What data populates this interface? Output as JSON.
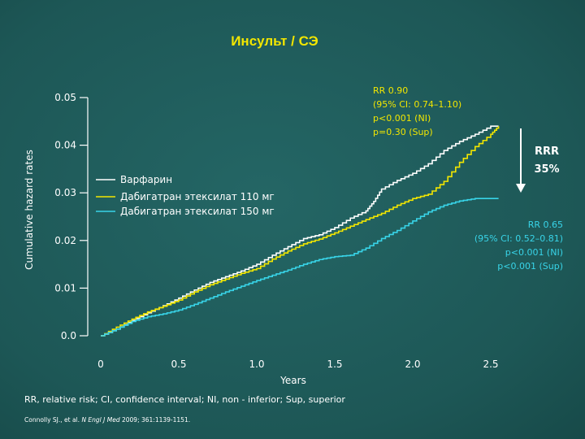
{
  "title": "Инсульт / СЭ",
  "colors": {
    "background": "#1f5c5b",
    "warfarin": "#ffffff",
    "dabi110": "#f2e600",
    "dabi150": "#38d4e8",
    "title": "#f2e600"
  },
  "chart_data": {
    "type": "line",
    "ylabel": "Cumulative hazard rates",
    "xlabel": "Years",
    "ylim": [
      0,
      0.05
    ],
    "xlim": [
      0,
      2.5
    ],
    "yticks": [
      "0.0",
      "0.01",
      "0.02",
      "0.03",
      "0.04",
      "0.05"
    ],
    "xticks": [
      "0",
      "0.5",
      "1.0",
      "1.5",
      "2.0",
      "2.5"
    ],
    "grid": false,
    "legend_position": "upper-left",
    "series": [
      {
        "name": "Варфарин",
        "color": "#ffffff",
        "points": [
          [
            0,
            0
          ],
          [
            0.1,
            0.0014
          ],
          [
            0.2,
            0.0032
          ],
          [
            0.3,
            0.0048
          ],
          [
            0.4,
            0.0063
          ],
          [
            0.5,
            0.0079
          ],
          [
            0.6,
            0.0096
          ],
          [
            0.7,
            0.0112
          ],
          [
            0.8,
            0.0124
          ],
          [
            0.9,
            0.0136
          ],
          [
            1.0,
            0.015
          ],
          [
            1.1,
            0.0169
          ],
          [
            1.2,
            0.0187
          ],
          [
            1.3,
            0.0204
          ],
          [
            1.4,
            0.0212
          ],
          [
            1.5,
            0.0227
          ],
          [
            1.6,
            0.0247
          ],
          [
            1.7,
            0.0262
          ],
          [
            1.75,
            0.0282
          ],
          [
            1.8,
            0.0308
          ],
          [
            1.9,
            0.0326
          ],
          [
            2.0,
            0.0341
          ],
          [
            2.1,
            0.0361
          ],
          [
            2.2,
            0.0389
          ],
          [
            2.3,
            0.0408
          ],
          [
            2.4,
            0.0423
          ],
          [
            2.5,
            0.044
          ],
          [
            2.55,
            0.044
          ]
        ]
      },
      {
        "name": "Дабигатран этексилат 110 мг",
        "color": "#f2e600",
        "points": [
          [
            0,
            0
          ],
          [
            0.1,
            0.0018
          ],
          [
            0.2,
            0.0035
          ],
          [
            0.3,
            0.005
          ],
          [
            0.4,
            0.0062
          ],
          [
            0.5,
            0.0075
          ],
          [
            0.6,
            0.0092
          ],
          [
            0.7,
            0.0107
          ],
          [
            0.8,
            0.0119
          ],
          [
            0.9,
            0.0131
          ],
          [
            1.0,
            0.0141
          ],
          [
            1.1,
            0.0161
          ],
          [
            1.2,
            0.0178
          ],
          [
            1.3,
            0.0193
          ],
          [
            1.4,
            0.0203
          ],
          [
            1.5,
            0.0216
          ],
          [
            1.6,
            0.023
          ],
          [
            1.7,
            0.0244
          ],
          [
            1.8,
            0.0257
          ],
          [
            1.9,
            0.0274
          ],
          [
            2.0,
            0.0288
          ],
          [
            2.1,
            0.0297
          ],
          [
            2.2,
            0.0324
          ],
          [
            2.3,
            0.0364
          ],
          [
            2.4,
            0.0397
          ],
          [
            2.5,
            0.0423
          ],
          [
            2.55,
            0.044
          ]
        ]
      },
      {
        "name": "Дабигатран этексилат 150 мг",
        "color": "#38d4e8",
        "points": [
          [
            0,
            0
          ],
          [
            0.1,
            0.0014
          ],
          [
            0.2,
            0.003
          ],
          [
            0.3,
            0.004
          ],
          [
            0.4,
            0.0046
          ],
          [
            0.5,
            0.0054
          ],
          [
            0.6,
            0.0066
          ],
          [
            0.7,
            0.0079
          ],
          [
            0.8,
            0.0092
          ],
          [
            0.9,
            0.0104
          ],
          [
            1.0,
            0.0116
          ],
          [
            1.1,
            0.0127
          ],
          [
            1.2,
            0.0138
          ],
          [
            1.3,
            0.015
          ],
          [
            1.4,
            0.016
          ],
          [
            1.5,
            0.0166
          ],
          [
            1.6,
            0.0169
          ],
          [
            1.7,
            0.0184
          ],
          [
            1.8,
            0.0204
          ],
          [
            1.9,
            0.0221
          ],
          [
            2.0,
            0.0241
          ],
          [
            2.1,
            0.026
          ],
          [
            2.2,
            0.0274
          ],
          [
            2.3,
            0.0283
          ],
          [
            2.4,
            0.0288
          ],
          [
            2.5,
            0.0288
          ],
          [
            2.55,
            0.0288
          ]
        ]
      }
    ],
    "legend": [
      {
        "label": "Варфарин",
        "color": "#ffffff"
      },
      {
        "label": "Дабигатран этексилат 110 мг",
        "color": "#f2e600"
      },
      {
        "label": "Дабигатран этексилат 150 мг",
        "color": "#38d4e8"
      }
    ]
  },
  "annotations": {
    "yellow": [
      "RR 0.90",
      "(95% CI: 0.74–1.10)",
      "p<0.001 (NI)",
      "p=0.30 (Sup)"
    ],
    "cyan": [
      "RR 0.65",
      "(95% CI: 0.52–0.81)",
      "p<0.001 (NI)",
      "p<0.001 (Sup)"
    ],
    "rrr": [
      "RRR",
      "35%"
    ]
  },
  "footnote": "RR, relative risk; CI, confidence interval; NI, non - inferior; Sup, superior",
  "citation_prefix": "Connolly SJ., et al. ",
  "citation_journal": "N Engl J Med",
  "citation_suffix": " 2009; 361:1139-1151."
}
